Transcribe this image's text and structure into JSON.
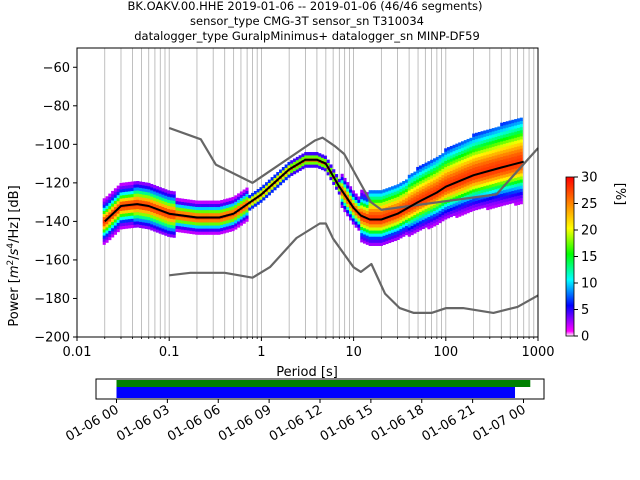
{
  "chart_data": {
    "type": "heatmap",
    "title_lines": [
      "BK.OAKV.00.HHE   2019-01-06 -- 2019-01-06  (46/46 segments)",
      "sensor_type CMG-3T sensor_sn T310034",
      "datalogger_type GuralpMinimus+ datalogger_sn MINP-DF59"
    ],
    "xlabel": "Period [s]",
    "ylabel": "Power [m²/s⁴/Hz] [dB]",
    "ylabel_parts": {
      "pre": "Power [",
      "m": "m",
      "m_sup": "2",
      "slash": "/",
      "s": "s",
      "s_sup": "4",
      "tail": "/Hz] [dB]"
    },
    "x_scale": "log",
    "xlim": [
      0.01,
      1000
    ],
    "ylim": [
      -200,
      -50
    ],
    "x_ticks": [
      {
        "value": 0.01,
        "label": "0.01"
      },
      {
        "value": 0.1,
        "label": "0.1"
      },
      {
        "value": 1,
        "label": "1"
      },
      {
        "value": 10,
        "label": "10"
      },
      {
        "value": 100,
        "label": "100"
      },
      {
        "value": 1000,
        "label": "1000"
      }
    ],
    "y_ticks": [
      {
        "value": -60,
        "label": "−60"
      },
      {
        "value": -80,
        "label": "−80"
      },
      {
        "value": -100,
        "label": "−100"
      },
      {
        "value": -120,
        "label": "−120"
      },
      {
        "value": -140,
        "label": "−140"
      },
      {
        "value": -160,
        "label": "−160"
      },
      {
        "value": -180,
        "label": "−180"
      },
      {
        "value": -200,
        "label": "−200"
      }
    ],
    "grid": "vertical at major and minor period ticks",
    "colormap": [
      "#ffffff",
      "#ff00ff",
      "#0000ff",
      "#00ffff",
      "#00ff00",
      "#ffff00",
      "#ff8000",
      "#ff0000"
    ],
    "line_colors": {
      "noise_models": "#666666",
      "mode": "#000000"
    },
    "colorbar": {
      "label": "[%]",
      "range": [
        0,
        30
      ],
      "ticks": [
        {
          "value": 0,
          "label": "0"
        },
        {
          "value": 5,
          "label": "5"
        },
        {
          "value": 10,
          "label": "10"
        },
        {
          "value": 15,
          "label": "15"
        },
        {
          "value": 20,
          "label": "20"
        },
        {
          "value": 25,
          "label": "25"
        },
        {
          "value": 30,
          "label": "30"
        }
      ]
    },
    "series": [
      {
        "role": "high-noise-model",
        "x": [
          0.1,
          0.22,
          0.32,
          0.8,
          3.8,
          4.6,
          6.3,
          7.9,
          15.4,
          20,
          354.8,
          10000
        ],
        "y": [
          -91.5,
          -97.4,
          -110.5,
          -120,
          -98,
          -96.5,
          -101,
          -105,
          -130,
          -134,
          -126,
          -48.5
        ]
      },
      {
        "role": "low-noise-model",
        "x": [
          0.1,
          0.17,
          0.4,
          0.8,
          1.24,
          2.4,
          4.3,
          5,
          6,
          10,
          12,
          15.6,
          21.9,
          31.6,
          45,
          70,
          101,
          154,
          328,
          600,
          10000
        ],
        "y": [
          -168,
          -166.7,
          -166.7,
          -169.2,
          -163.7,
          -148.6,
          -141.1,
          -141.1,
          -149,
          -163.8,
          -166.2,
          -162.1,
          -177.5,
          -185,
          -187.5,
          -187.5,
          -185,
          -185,
          -187.5,
          -184.4,
          -151.5
        ]
      },
      {
        "role": "mode",
        "x": [
          0.02,
          0.03,
          0.045,
          0.06,
          0.1,
          0.2,
          0.35,
          0.5,
          1,
          2,
          3,
          4,
          5,
          7,
          10,
          12,
          15,
          20,
          30,
          50,
          80,
          100,
          200,
          400,
          700
        ],
        "y": [
          -140,
          -132,
          -131,
          -132,
          -136,
          -138,
          -138,
          -136,
          -126,
          -113,
          -108,
          -108,
          -110,
          -122,
          -133,
          -137,
          -139,
          -139,
          -136,
          -130,
          -125,
          -122,
          -116,
          -112,
          -109
        ]
      }
    ],
    "timeline": {
      "start": "2019-01-06 00:00",
      "end": "2019-01-07 00:00",
      "ticks": [
        {
          "hour": 0,
          "label": "01-06 00"
        },
        {
          "hour": 3,
          "label": "01-06 03"
        },
        {
          "hour": 6,
          "label": "01-06 06"
        },
        {
          "hour": 9,
          "label": "01-06 09"
        },
        {
          "hour": 12,
          "label": "01-06 12"
        },
        {
          "hour": 15,
          "label": "01-06 15"
        },
        {
          "hour": 18,
          "label": "01-06 18"
        },
        {
          "hour": 21,
          "label": "01-06 21"
        },
        {
          "hour": 24,
          "label": "01-07 00"
        }
      ],
      "bars": [
        {
          "role": "data-coverage",
          "color": "#008000",
          "start_hour": 0,
          "end_hour": 24.4
        },
        {
          "role": "psd-coverage",
          "color": "#0000ff",
          "start_hour": 0,
          "end_hour": 23.5
        }
      ]
    }
  }
}
